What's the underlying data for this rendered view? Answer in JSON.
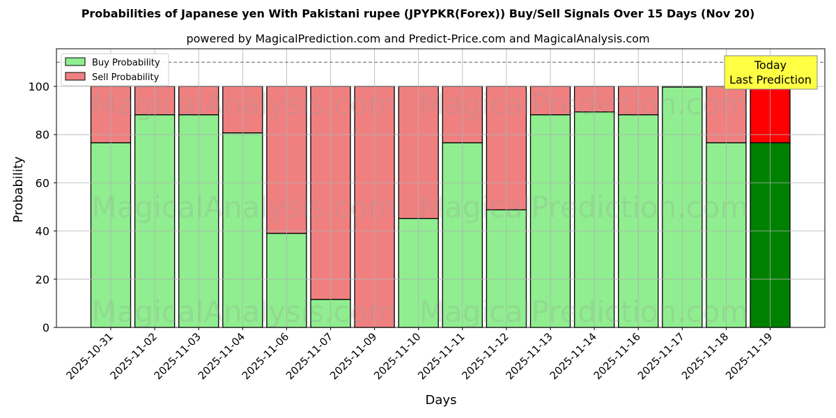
{
  "title": "Probabilities of Japanese yen With Pakistani rupee (JPYPKR(Forex)) Buy/Sell Signals Over 15 Days (Nov 20)",
  "subtitle": "powered by MagicalPrediction.com and Predict-Price.com and MagicalAnalysis.com",
  "watermarks": [
    "MagicalAnalysis.com",
    "MagicalPrediction.com"
  ],
  "annotation": {
    "line1": "Today",
    "line2": "Last Prediction",
    "bg": "#ffff44"
  },
  "colors": {
    "buy": "#90ee90",
    "sell": "#f08080",
    "buy_last": "#008000",
    "sell_last": "#ff0000"
  },
  "chart_data": {
    "type": "bar",
    "stacked": true,
    "title": "Probabilities of Japanese yen With Pakistani rupee (JPYPKR(Forex)) Buy/Sell Signals Over 15 Days (Nov 20)",
    "subtitle": "powered by MagicalPrediction.com and Predict-Price.com and MagicalAnalysis.com",
    "xlabel": "Days",
    "ylabel": "Probability",
    "ylim": [
      0,
      115
    ],
    "yticks": [
      0,
      20,
      40,
      60,
      80,
      100
    ],
    "grid": true,
    "legend_position": "upper left",
    "reference_line": 110,
    "categories": [
      "2025-10-31",
      "2025-11-02",
      "2025-11-03",
      "2025-11-04",
      "2025-11-06",
      "2025-11-07",
      "2025-11-09",
      "2025-11-10",
      "2025-11-11",
      "2025-11-12",
      "2025-11-13",
      "2025-11-14",
      "2025-11-16",
      "2025-11-17",
      "2025-11-18",
      "2025-11-19"
    ],
    "series": [
      {
        "name": "Buy Probability",
        "values": [
          76.6,
          88.2,
          88.2,
          80.7,
          39.0,
          11.6,
          0.0,
          45.2,
          76.6,
          48.8,
          88.2,
          89.4,
          88.2,
          99.7,
          76.6,
          76.6
        ]
      },
      {
        "name": "Sell Probability",
        "values": [
          23.4,
          11.8,
          11.8,
          19.3,
          61.0,
          88.4,
          100.0,
          54.8,
          23.4,
          51.2,
          11.8,
          10.6,
          11.8,
          0.3,
          23.4,
          23.4
        ]
      }
    ]
  }
}
